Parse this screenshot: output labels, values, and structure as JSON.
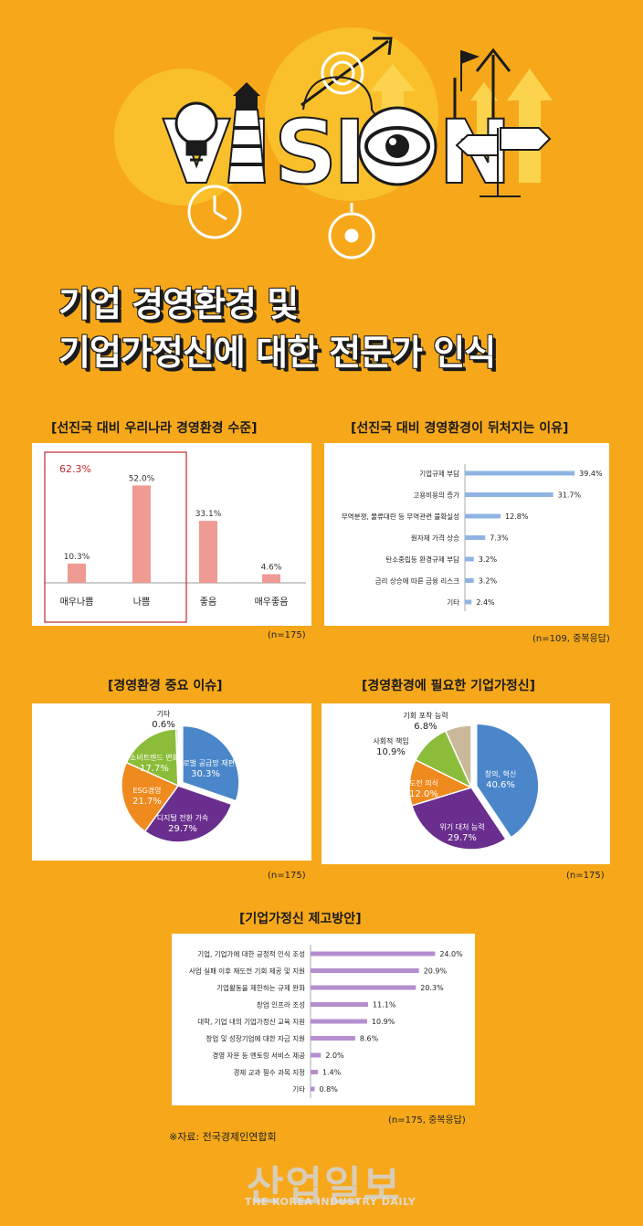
{
  "hero": {
    "vision_letters": "VISION"
  },
  "title": {
    "line1": "기업 경영환경 및",
    "line2": "기업가정신에 대한 전문가 인식"
  },
  "chart_data": [
    {
      "id": "env-level",
      "type": "bar",
      "title": "[선진국 대비 우리나라 경영환경 수준]",
      "categories": [
        "매우나쁨",
        "나쁨",
        "좋음",
        "매우좋음"
      ],
      "values": [
        10.3,
        52.0,
        33.1,
        4.6
      ],
      "value_labels": [
        "10.3%",
        "52.0%",
        "33.1%",
        "4.6%"
      ],
      "highlight_label": "62.3%",
      "color": "#ef9a92",
      "highlight_color": "#c0272d",
      "ylim": [
        0,
        60
      ],
      "note": "(n=175)"
    },
    {
      "id": "lag-reasons",
      "type": "bar",
      "orientation": "horizontal",
      "title": "[선진국 대비 경영환경이 뒤처지는 이유]",
      "categories": [
        "기업규제 부담",
        "고용비용의 증가",
        "무역분쟁, 물류대란 등 무역관련 불확실성",
        "원자재 가격 상승",
        "탄소중립등 환경규제 부담",
        "금리 상승에 따른 금융 리스크",
        "기타"
      ],
      "values": [
        39.4,
        31.7,
        12.8,
        7.3,
        3.2,
        3.2,
        2.4
      ],
      "value_labels": [
        "39.4%",
        "31.7%",
        "12.8%",
        "7.3%",
        "3.2%",
        "3.2%",
        "2.4%"
      ],
      "color": "#8fb4e3",
      "xlim": [
        0,
        40
      ],
      "note": "(n=109, 중복응답)"
    },
    {
      "id": "key-issues",
      "type": "pie",
      "title": "[경영환경 중요 이슈]",
      "labels": [
        "글로벌 공급망 재편",
        "디지털 전환 가속",
        "ESG경영",
        "소비트렌드 변화",
        "기타"
      ],
      "values": [
        30.3,
        29.7,
        21.7,
        17.7,
        0.6
      ],
      "value_labels": [
        "30.3%",
        "29.7%",
        "21.7%",
        "17.7%",
        "0.6%"
      ],
      "colors": [
        "#4a86c9",
        "#6a2e8f",
        "#ef8a1e",
        "#8bbd3a",
        "#c9b99a"
      ],
      "note": "(n=175)"
    },
    {
      "id": "needed-spirit",
      "type": "pie",
      "title": "[경영환경에 필요한 기업가정신]",
      "labels": [
        "창의, 혁신",
        "위기 대처 능력",
        "도전 의식",
        "사회적 책임",
        "기회 포착 능력"
      ],
      "values": [
        40.6,
        29.7,
        12.0,
        10.9,
        6.8
      ],
      "value_labels": [
        "40.6%",
        "29.7%",
        "12.0%",
        "10.9%",
        "6.8%"
      ],
      "colors": [
        "#4a86c9",
        "#6a2e8f",
        "#ef8a1e",
        "#8bbd3a",
        "#c9b99a"
      ],
      "note": "(n=175)"
    },
    {
      "id": "improvement",
      "type": "bar",
      "orientation": "horizontal",
      "title": "[기업가정신 제고방안]",
      "categories": [
        "기업, 기업가에 대한 긍정적 인식 조성",
        "사업 실패 이후 재도전 기회 제공 및 지원",
        "기업활동을 제한하는 규제 완화",
        "창업 인프라 조성",
        "대학, 기업 내의 기업가정신 교육 지원",
        "창업 및 성장기업에 대한 자금 지원",
        "경영 자문 등 멘토링 서비스 제공",
        "경제 교과 필수 과목 지정",
        "기타"
      ],
      "values": [
        24.0,
        20.9,
        20.3,
        11.1,
        10.9,
        8.6,
        2.0,
        1.4,
        0.8
      ],
      "value_labels": [
        "24.0%",
        "20.9%",
        "20.3%",
        "11.1%",
        "10.9%",
        "8.6%",
        "2.0%",
        "1.4%",
        "0.8%"
      ],
      "color": "#b58ed0",
      "xlim": [
        0,
        25
      ],
      "note": "(n=175, 중복응답)"
    }
  ],
  "source": "※자료: 전국경제인연합회",
  "footer": {
    "logo": "산업일보",
    "sub": "THE KOREA INDUSTRY DAILY"
  }
}
